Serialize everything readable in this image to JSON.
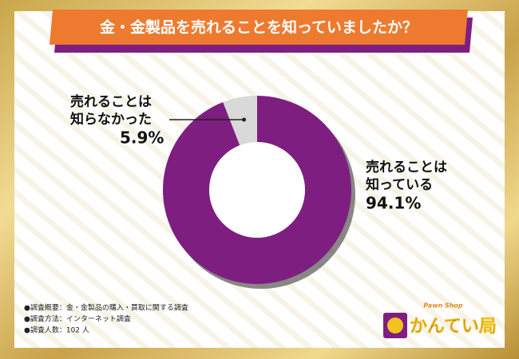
{
  "chart_data": {
    "type": "donut",
    "title": "金・金製品を売れることを知っていましたか？",
    "categories": [
      "売れることは\n知っている",
      "売れることは\n知らなかった"
    ],
    "values": [
      94.1,
      5.9
    ],
    "value_labels": [
      "94.1%",
      "5.9%"
    ],
    "colors": [
      "#7e1e80",
      "#d9d9d9"
    ],
    "notes": [
      "●調査概要：金・金製品の購入・買取に関する調査",
      "●調査方法：インターネット調査",
      "●調査人数：102 人"
    ],
    "logo": {
      "tagline": "Pawn Shop",
      "name": "かんてい局"
    }
  }
}
